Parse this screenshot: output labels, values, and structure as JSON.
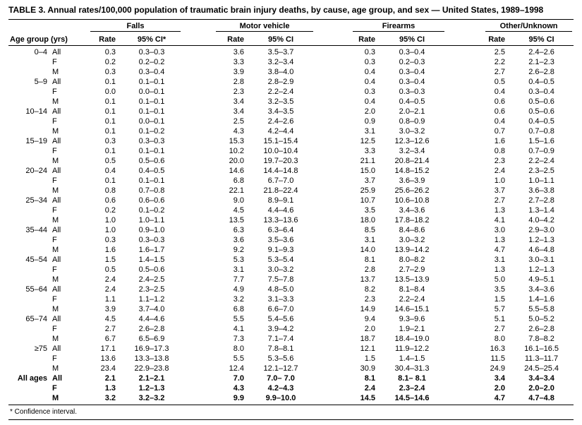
{
  "title": "TABLE 3. Annual rates/100,000 population of traumatic brain injury deaths, by cause, age group, and sex — United States, 1989–1998",
  "footnote": "* Confidence interval.",
  "table": {
    "age_col_header": "Age group (yrs)",
    "groups": [
      {
        "label": "Falls",
        "rate_header": "Rate",
        "ci_header": "95% CI*"
      },
      {
        "label": "Motor vehicle",
        "rate_header": "Rate",
        "ci_header": "95% CI"
      },
      {
        "label": "Firearms",
        "rate_header": "Rate",
        "ci_header": "95% CI"
      },
      {
        "label": "Other/Unknown",
        "rate_header": "Rate",
        "ci_header": "95% CI"
      }
    ],
    "rows": [
      {
        "age": "0–4",
        "sex": "All",
        "v": [
          "0.3",
          "0.3–0.3",
          "3.6",
          "3.5–3.7",
          "0.3",
          "0.3–0.4",
          "2.5",
          "2.4–2.6"
        ]
      },
      {
        "age": "",
        "sex": "F",
        "v": [
          "0.2",
          "0.2–0.2",
          "3.3",
          "3.2–3.4",
          "0.3",
          "0.2–0.3",
          "2.2",
          "2.1–2.3"
        ]
      },
      {
        "age": "",
        "sex": "M",
        "v": [
          "0.3",
          "0.3–0.4",
          "3.9",
          "3.8–4.0",
          "0.4",
          "0.3–0.4",
          "2.7",
          "2.6–2.8"
        ]
      },
      {
        "age": "5–9",
        "sex": "All",
        "v": [
          "0.1",
          "0.1–0.1",
          "2.8",
          "2.8–2.9",
          "0.4",
          "0.3–0.4",
          "0.5",
          "0.4–0.5"
        ]
      },
      {
        "age": "",
        "sex": "F",
        "v": [
          "0.0",
          "0.0–0.1",
          "2.3",
          "2.2–2.4",
          "0.3",
          "0.3–0.3",
          "0.4",
          "0.3–0.4"
        ]
      },
      {
        "age": "",
        "sex": "M",
        "v": [
          "0.1",
          "0.1–0.1",
          "3.4",
          "3.2–3.5",
          "0.4",
          "0.4–0.5",
          "0.6",
          "0.5–0.6"
        ]
      },
      {
        "age": "10–14",
        "sex": "All",
        "v": [
          "0.1",
          "0.1–0.1",
          "3.4",
          "3.4–3.5",
          "2.0",
          "2.0–2.1",
          "0.6",
          "0.5–0.6"
        ]
      },
      {
        "age": "",
        "sex": "F",
        "v": [
          "0.1",
          "0.0–0.1",
          "2.5",
          "2.4–2.6",
          "0.9",
          "0.8–0.9",
          "0.4",
          "0.4–0.5"
        ]
      },
      {
        "age": "",
        "sex": "M",
        "v": [
          "0.1",
          "0.1–0.2",
          "4.3",
          "4.2–4.4",
          "3.1",
          "3.0–3.2",
          "0.7",
          "0.7–0.8"
        ]
      },
      {
        "age": "15–19",
        "sex": "All",
        "v": [
          "0.3",
          "0.3–0.3",
          "15.3",
          "15.1–15.4",
          "12.5",
          "12.3–12.6",
          "1.6",
          "1.5–1.6"
        ]
      },
      {
        "age": "",
        "sex": "F",
        "v": [
          "0.1",
          "0.1–0.1",
          "10.2",
          "10.0–10.4",
          "3.3",
          "3.2–3.4",
          "0.8",
          "0.7–0.9"
        ]
      },
      {
        "age": "",
        "sex": "M",
        "v": [
          "0.5",
          "0.5–0.6",
          "20.0",
          "19.7–20.3",
          "21.1",
          "20.8–21.4",
          "2.3",
          "2.2–2.4"
        ]
      },
      {
        "age": "20–24",
        "sex": "All",
        "v": [
          "0.4",
          "0.4–0.5",
          "14.6",
          "14.4–14.8",
          "15.0",
          "14.8–15.2",
          "2.4",
          "2.3–2.5"
        ]
      },
      {
        "age": "",
        "sex": "F",
        "v": [
          "0.1",
          "0.1–0.1",
          "6.8",
          "6.7–7.0",
          "3.7",
          "3.6–3.9",
          "1.0",
          "1.0–1.1"
        ]
      },
      {
        "age": "",
        "sex": "M",
        "v": [
          "0.8",
          "0.7–0.8",
          "22.1",
          "21.8–22.4",
          "25.9",
          "25.6–26.2",
          "3.7",
          "3.6–3.8"
        ]
      },
      {
        "age": "25–34",
        "sex": "All",
        "v": [
          "0.6",
          "0.6–0.6",
          "9.0",
          "8.9–9.1",
          "10.7",
          "10.6–10.8",
          "2.7",
          "2.7–2.8"
        ]
      },
      {
        "age": "",
        "sex": "F",
        "v": [
          "0.2",
          "0.1–0.2",
          "4.5",
          "4.4–4.6",
          "3.5",
          "3.4–3.6",
          "1.3",
          "1.3–1.4"
        ]
      },
      {
        "age": "",
        "sex": "M",
        "v": [
          "1.0",
          "1.0–1.1",
          "13.5",
          "13.3–13.6",
          "18.0",
          "17.8–18.2",
          "4.1",
          "4.0–4.2"
        ]
      },
      {
        "age": "35–44",
        "sex": "All",
        "v": [
          "1.0",
          "0.9–1.0",
          "6.3",
          "6.3–6.4",
          "8.5",
          "8.4–8.6",
          "3.0",
          "2.9–3.0"
        ]
      },
      {
        "age": "",
        "sex": "F",
        "v": [
          "0.3",
          "0.3–0.3",
          "3.6",
          "3.5–3.6",
          "3.1",
          "3.0–3.2",
          "1.3",
          "1.2–1.3"
        ]
      },
      {
        "age": "",
        "sex": "M",
        "v": [
          "1.6",
          "1.6–1.7",
          "9.2",
          "9.1–9.3",
          "14.0",
          "13.9–14.2",
          "4.7",
          "4.6–4.8"
        ]
      },
      {
        "age": "45–54",
        "sex": "All",
        "v": [
          "1.5",
          "1.4–1.5",
          "5.3",
          "5.3–5.4",
          "8.1",
          "8.0–8.2",
          "3.1",
          "3.0–3.1"
        ]
      },
      {
        "age": "",
        "sex": "F",
        "v": [
          "0.5",
          "0.5–0.6",
          "3.1",
          "3.0–3.2",
          "2.8",
          "2.7–2.9",
          "1.3",
          "1.2–1.3"
        ]
      },
      {
        "age": "",
        "sex": "M",
        "v": [
          "2.4",
          "2.4–2.5",
          "7.7",
          "7.5–7.8",
          "13.7",
          "13.5–13.9",
          "5.0",
          "4.9–5.1"
        ]
      },
      {
        "age": "55–64",
        "sex": "All",
        "v": [
          "2.4",
          "2.3–2.5",
          "4.9",
          "4.8–5.0",
          "8.2",
          "8.1–8.4",
          "3.5",
          "3.4–3.6"
        ]
      },
      {
        "age": "",
        "sex": "F",
        "v": [
          "1.1",
          "1.1–1.2",
          "3.2",
          "3.1–3.3",
          "2.3",
          "2.2–2.4",
          "1.5",
          "1.4–1.6"
        ]
      },
      {
        "age": "",
        "sex": "M",
        "v": [
          "3.9",
          "3.7–4.0",
          "6.8",
          "6.6–7.0",
          "14.9",
          "14.6–15.1",
          "5.7",
          "5.5–5.8"
        ]
      },
      {
        "age": "65–74",
        "sex": "All",
        "v": [
          "4.5",
          "4.4–4.6",
          "5.5",
          "5.4–5.6",
          "9.4",
          "9.3–9.6",
          "5.1",
          "5.0–5.2"
        ]
      },
      {
        "age": "",
        "sex": "F",
        "v": [
          "2.7",
          "2.6–2.8",
          "4.1",
          "3.9–4.2",
          "2.0",
          "1.9–2.1",
          "2.7",
          "2.6–2.8"
        ]
      },
      {
        "age": "",
        "sex": "M",
        "v": [
          "6.7",
          "6.5–6.9",
          "7.3",
          "7.1–7.4",
          "18.7",
          "18.4–19.0",
          "8.0",
          "7.8–8.2"
        ]
      },
      {
        "age": "≥75",
        "sex": "All",
        "v": [
          "17.1",
          "16.9–17.3",
          "8.0",
          "7.8–8.1",
          "12.1",
          "11.9–12.2",
          "16.3",
          "16.1–16.5"
        ]
      },
      {
        "age": "",
        "sex": "F",
        "v": [
          "13.6",
          "13.3–13.8",
          "5.5",
          "5.3–5.6",
          "1.5",
          "1.4–1.5",
          "11.5",
          "11.3–11.7"
        ]
      },
      {
        "age": "",
        "sex": "M",
        "v": [
          "23.4",
          "22.9–23.8",
          "12.4",
          "12.1–12.7",
          "30.9",
          "30.4–31.3",
          "24.9",
          "24.5–25.4"
        ]
      },
      {
        "age": "All ages",
        "sex": "All",
        "bold": true,
        "v": [
          "2.1",
          "2.1–2.1",
          "7.0",
          "7.0– 7.0",
          "8.1",
          "8.1– 8.1",
          "3.4",
          "3.4–3.4"
        ]
      },
      {
        "age": "",
        "sex": "F",
        "bold": true,
        "v": [
          "1.3",
          "1.2–1.3",
          "4.3",
          "4.2–4.3",
          "2.4",
          "2.3–2.4",
          "2.0",
          "2.0–2.0"
        ]
      },
      {
        "age": "",
        "sex": "M",
        "bold": true,
        "v": [
          "3.2",
          "3.2–3.2",
          "9.9",
          "9.9–10.0",
          "14.5",
          "14.5–14.6",
          "4.7",
          "4.7–4.8"
        ]
      }
    ]
  }
}
